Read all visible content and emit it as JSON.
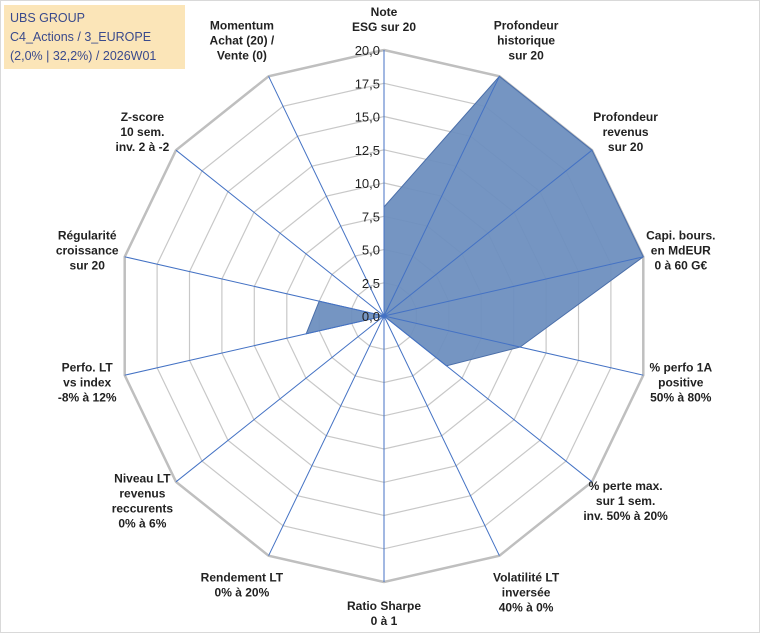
{
  "info": {
    "line1": "UBS GROUP",
    "line2": "C4_Actions / 3_EUROPE",
    "line3": "(2,0% | 32,2%) / 2026W01"
  },
  "chart_data": {
    "type": "radar",
    "title": "UBS GROUP",
    "axis_min": 0,
    "axis_max": 20,
    "tick_step": 2.5,
    "tick_labels": [
      "0,0",
      "2,5",
      "5,0",
      "7,5",
      "10,0",
      "12,5",
      "15,0",
      "17,5",
      "20,0"
    ],
    "axes": [
      {
        "label": [
          "Note",
          "ESG sur 20"
        ],
        "value": 8.2
      },
      {
        "label": [
          "Profondeur",
          "historique",
          "sur 20"
        ],
        "value": 20.0
      },
      {
        "label": [
          "Profondeur",
          "revenus",
          "sur 20"
        ],
        "value": 20.0
      },
      {
        "label": [
          "Capi. bours.",
          "en MdEUR",
          "0 à 60 G€"
        ],
        "value": 20.0
      },
      {
        "label": [
          "% perfo 1A",
          "positive",
          "50% à 80%"
        ],
        "value": 10.5
      },
      {
        "label": [
          "% perte max.",
          "sur 1 sem.",
          "inv. 50% à 20%"
        ],
        "value": 6.0
      },
      {
        "label": [
          "Volatilité LT",
          "inversée",
          "40% à 0%"
        ],
        "value": 0.0
      },
      {
        "label": [
          "Ratio Sharpe",
          "0 à 1"
        ],
        "value": 0.0
      },
      {
        "label": [
          "Rendement LT",
          "0% à 20%"
        ],
        "value": 0.0
      },
      {
        "label": [
          "Niveau LT",
          "revenus",
          "reccurents",
          "0% à 6%"
        ],
        "value": 0.0
      },
      {
        "label": [
          "Perfo. LT",
          "vs index",
          "-8% à 12%"
        ],
        "value": 6.0
      },
      {
        "label": [
          "Régularité",
          "croissance",
          "sur 20"
        ],
        "value": 5.0
      },
      {
        "label": [
          "Z-score",
          "10 sem.",
          "inv. 2 à -2"
        ],
        "value": 0.0
      },
      {
        "label": [
          "Momentum",
          "Achat (20) /",
          "Vente (0)"
        ],
        "value": 0.0
      }
    ],
    "series": [
      {
        "name": "UBS GROUP",
        "color": "#6e8fbf",
        "edge_color": "#4a6ea9"
      }
    ],
    "colors": {
      "grid": "#c8c8c8",
      "spoke": "#4472c4"
    }
  }
}
